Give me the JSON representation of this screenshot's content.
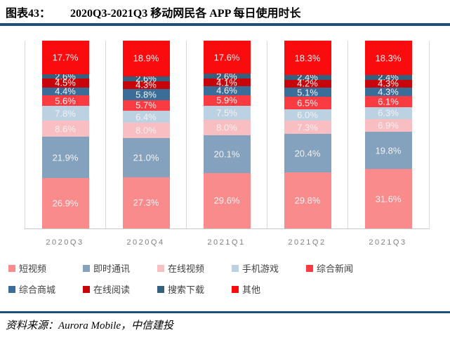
{
  "header": {
    "figure_label": "图表43：",
    "title": "2020Q3-2021Q3 移动网民各 APP 每日使用时长"
  },
  "chart_data": {
    "type": "bar",
    "stacked": true,
    "title": "2020Q3-2021Q3 移动网民各 APP 每日使用时长",
    "unit": "%",
    "ylim": [
      0,
      100
    ],
    "grid": "vertical-category-separators",
    "legend_position": "bottom",
    "data_labels": "percent-one-decimal",
    "categories": [
      "2020Q3",
      "2020Q4",
      "2021Q1",
      "2021Q2",
      "2021Q3"
    ],
    "series": [
      {
        "name": "短视频",
        "color": "#F98B8D",
        "values": [
          26.9,
          27.3,
          29.6,
          29.8,
          31.6
        ]
      },
      {
        "name": "即时通讯",
        "color": "#84A1BD",
        "values": [
          21.9,
          21.0,
          20.1,
          20.4,
          19.8
        ]
      },
      {
        "name": "在线视频",
        "color": "#F9BEC2",
        "values": [
          8.6,
          8.0,
          8.0,
          7.3,
          6.9
        ]
      },
      {
        "name": "手机游戏",
        "color": "#BCD1E1",
        "values": [
          7.8,
          6.4,
          7.5,
          6.0,
          6.3
        ]
      },
      {
        "name": "综合新闻",
        "color": "#FA3B41",
        "values": [
          5.6,
          5.7,
          5.9,
          6.5,
          6.1
        ]
      },
      {
        "name": "综合商城",
        "color": "#3A6D97",
        "values": [
          4.4,
          5.8,
          4.6,
          5.1,
          4.3
        ]
      },
      {
        "name": "在线阅读",
        "color": "#C7040A",
        "values": [
          4.5,
          4.3,
          4.1,
          4.2,
          4.3
        ]
      },
      {
        "name": "搜索下载",
        "color": "#35607E",
        "values": [
          2.6,
          2.6,
          2.6,
          2.4,
          2.4
        ]
      },
      {
        "name": "其他",
        "color": "#F90B0E",
        "values": [
          17.7,
          18.9,
          17.6,
          18.3,
          18.3
        ]
      }
    ]
  },
  "footer": {
    "text": "资料来源：Aurora Mobile，中信建投"
  },
  "colors": {
    "rule": "#1F4E79",
    "axis_label": "#7F7F7F",
    "gridline": "#D9D9D9",
    "data_label": "#F2F2F2"
  }
}
